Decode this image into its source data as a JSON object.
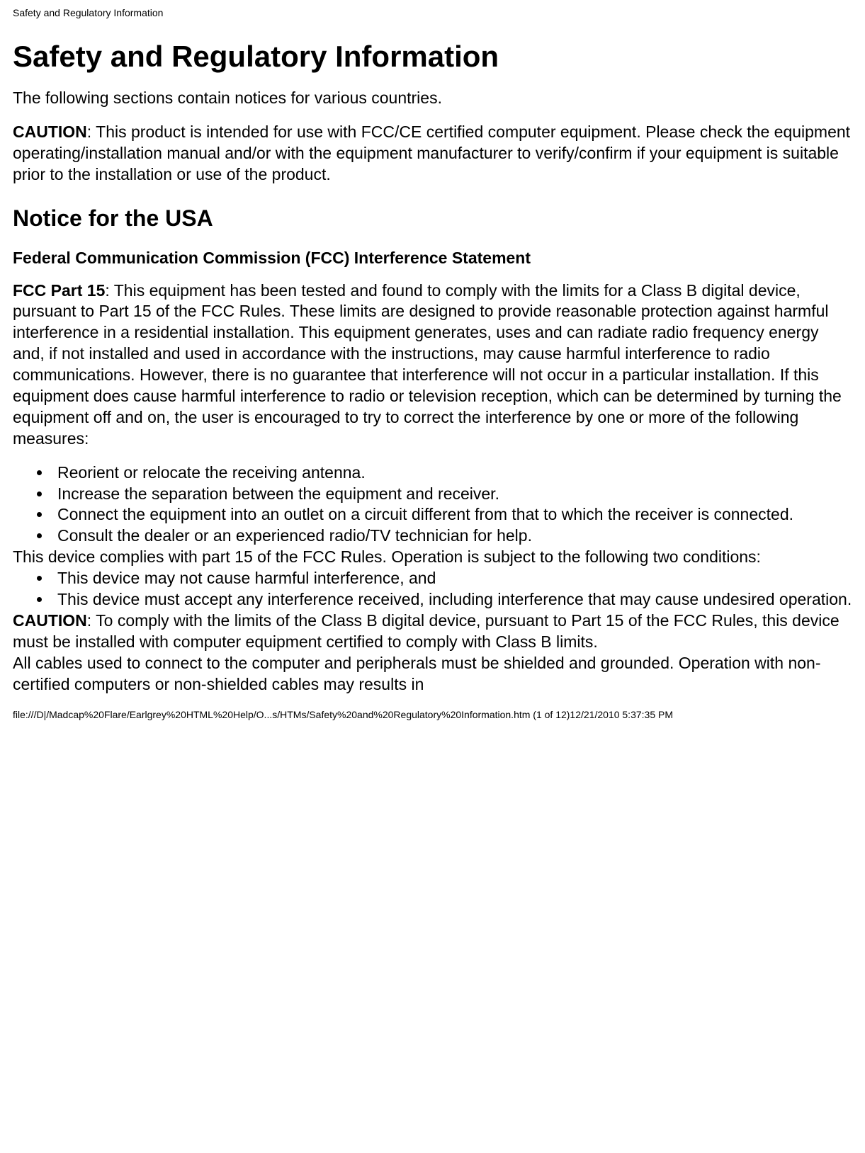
{
  "header": {
    "title": "Safety and Regulatory Information"
  },
  "main": {
    "h1": "Safety and Regulatory Information",
    "intro": "The following sections contain notices for various countries.",
    "caution_label": "CAUTION",
    "caution_text": ": This product is intended for use with FCC/CE certified computer equipment. Please check the equipment operating/installation manual and/or with the equipment manufacturer to verify/confirm if your equipment is suitable prior to the installation or use of the product.",
    "h2": "Notice for the USA",
    "h3": "Federal Communication Commission (FCC) Interference Statement",
    "fcc_label": "FCC Part 15",
    "fcc_text": ": This equipment has been tested and found to comply with the limits for a Class B digital device, pursuant to Part 15 of the FCC Rules. These limits are designed to provide reasonable protection against harmful interference in a residential installation. This equipment generates, uses and can radiate radio frequency energy and, if not installed and used in accordance with the instructions, may cause harmful interference to radio communications. However, there is no guarantee that interference will not occur in a particular installation. If this equipment does cause harmful interference to radio or television reception, which can be determined by turning the equipment off and on, the user is encouraged to try to correct the interference by one or more of the following measures:",
    "measures": [
      "Reorient or relocate the receiving antenna.",
      "Increase the separation between the equipment and receiver.",
      "Connect the equipment into an outlet on a circuit different from that to which the receiver is connected.",
      "Consult the dealer or an experienced radio/TV technician for help."
    ],
    "compliance_text": "This device complies with part 15 of the FCC Rules. Operation is subject to the following two conditions:",
    "conditions": [
      "This device may not cause harmful interference, and",
      "This device must accept any interference received, including interference that may cause undesired operation."
    ],
    "caution2_label": "CAUTION",
    "caution2_text": ": To comply with the limits of the Class B digital device, pursuant to Part 15 of the FCC Rules, this device must be installed with computer equipment certified to comply with Class B limits.",
    "cables_text": "All cables used to connect to the computer and peripherals must be shielded and grounded. Operation with non-certified computers or non-shielded cables may results in"
  },
  "footer": {
    "text": "file:///D|/Madcap%20Flare/Earlgrey%20HTML%20Help/O...s/HTMs/Safety%20and%20Regulatory%20Information.htm (1 of 12)12/21/2010 5:37:35 PM"
  }
}
